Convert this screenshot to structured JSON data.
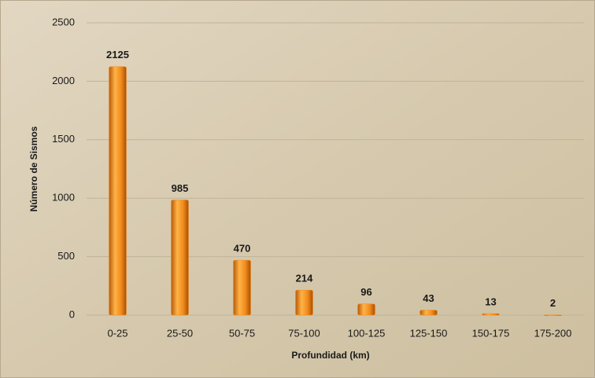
{
  "chart_data": {
    "type": "bar",
    "categories": [
      "0-25",
      "25-50",
      "50-75",
      "75-100",
      "100-125",
      "125-150",
      "150-175",
      "175-200"
    ],
    "values": [
      2125,
      985,
      470,
      214,
      96,
      43,
      13,
      2
    ],
    "color": "#f08a1c",
    "ylim": [
      0,
      2500
    ],
    "yticks": [
      0,
      500,
      1000,
      1500,
      2000,
      2500
    ],
    "grid": true,
    "x_label": "Profundidad (km)",
    "y_label": "Número de Sismos"
  }
}
